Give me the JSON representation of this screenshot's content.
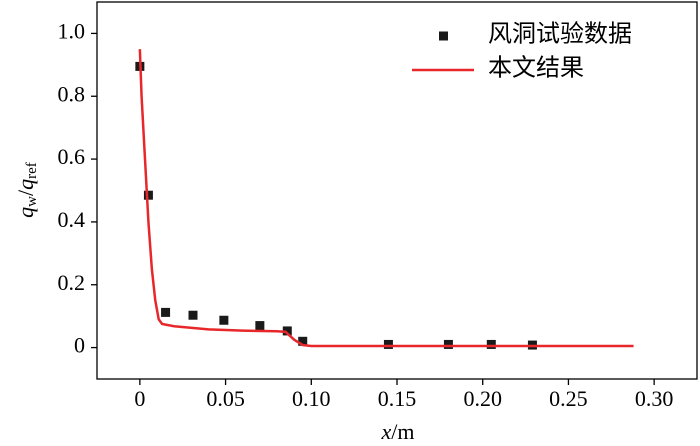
{
  "chart_data": {
    "type": "scatter-line",
    "xlabel_parts": [
      "x",
      "/m"
    ],
    "ylabel_parts": [
      "q",
      "w",
      "/",
      "q",
      "ref"
    ],
    "xlim": [
      -0.025,
      0.325
    ],
    "ylim": [
      -0.1,
      1.1
    ],
    "xticks": [
      0,
      0.05,
      {
        "value": 0.1,
        "label": "0.10"
      },
      0.15,
      {
        "value": 0.2,
        "label": "0.20"
      },
      0.25,
      {
        "value": 0.3,
        "label": "0.30"
      }
    ],
    "yticks": [
      0,
      0.2,
      0.4,
      0.6,
      0.8,
      {
        "value": 1,
        "label": "1.0"
      }
    ],
    "legend_position": "upper right",
    "series": [
      {
        "name": "风洞试验数据",
        "kind": "scatter",
        "color": "#1a1a1a",
        "x": [
          0,
          0.005,
          0.015,
          0.031,
          0.049,
          0.07,
          0.086,
          0.095,
          0.145,
          0.18,
          0.205,
          0.229
        ],
        "values": [
          0.895,
          0.485,
          0.112,
          0.103,
          0.087,
          0.07,
          0.053,
          0.02,
          0.01,
          0.01,
          0.01,
          0.008
        ]
      },
      {
        "name": "本文结果",
        "kind": "line",
        "color": "#e8272a",
        "x": [
          0,
          0.001,
          0.003,
          0.005,
          0.007,
          0.009,
          0.011,
          0.013,
          0.02,
          0.04,
          0.06,
          0.08,
          0.085,
          0.09,
          0.095,
          0.1,
          0.2,
          0.288
        ],
        "values": [
          0.95,
          0.8,
          0.6,
          0.4,
          0.25,
          0.15,
          0.09,
          0.075,
          0.068,
          0.058,
          0.054,
          0.052,
          0.05,
          0.025,
          0.008,
          0.005,
          0.005,
          0.005
        ]
      }
    ]
  }
}
